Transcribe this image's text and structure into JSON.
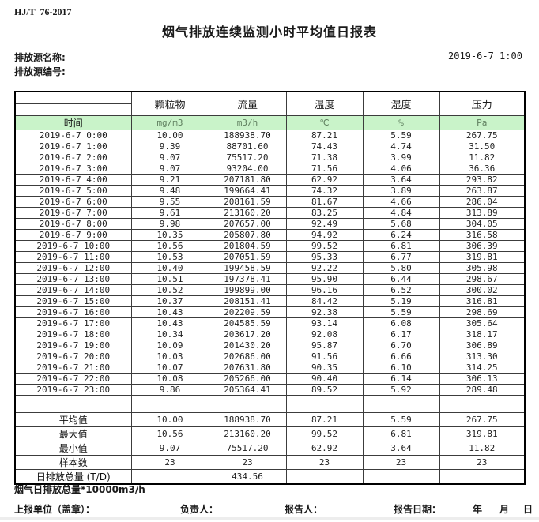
{
  "header": {
    "standard": "HJ/T  76-2017",
    "title": "烟气排放连续监测小时平均值日报表",
    "source_name_label": "排放源名称:",
    "source_id_label": "排放源编号:",
    "datetime": "2019-6-7 1:00"
  },
  "colors": {
    "units_row_green_bg": "#c9f3c9",
    "units_text_green": "#5f7f5f"
  },
  "table": {
    "time_label": "时间",
    "col_headers": [
      "颗粒物",
      "流量",
      "温度",
      "湿度",
      "压力"
    ],
    "units": [
      "mg/m3",
      "m3/h",
      "℃",
      "%",
      "Pa"
    ],
    "rows": [
      {
        "time": "2019-6-7 0:00",
        "values": [
          "10.00",
          "188938.70",
          "87.21",
          "5.59",
          "267.75"
        ]
      },
      {
        "time": "2019-6-7 1:00",
        "values": [
          "9.39",
          "88701.60",
          "74.43",
          "4.74",
          "31.50"
        ]
      },
      {
        "time": "2019-6-7 2:00",
        "values": [
          "9.07",
          "75517.20",
          "71.38",
          "3.99",
          "11.82"
        ]
      },
      {
        "time": "2019-6-7 3:00",
        "values": [
          "9.07",
          "93204.00",
          "71.56",
          "4.06",
          "36.36"
        ]
      },
      {
        "time": "2019-6-7 4:00",
        "values": [
          "9.21",
          "207181.80",
          "62.92",
          "3.64",
          "293.82"
        ]
      },
      {
        "time": "2019-6-7 5:00",
        "values": [
          "9.48",
          "199664.41",
          "74.32",
          "3.89",
          "263.87"
        ]
      },
      {
        "time": "2019-6-7 6:00",
        "values": [
          "9.55",
          "208161.59",
          "81.67",
          "4.66",
          "286.04"
        ]
      },
      {
        "time": "2019-6-7 7:00",
        "values": [
          "9.61",
          "213160.20",
          "83.25",
          "4.84",
          "313.89"
        ]
      },
      {
        "time": "2019-6-7 8:00",
        "values": [
          "9.98",
          "207657.00",
          "92.49",
          "5.68",
          "304.05"
        ]
      },
      {
        "time": "2019-6-7 9:00",
        "values": [
          "10.35",
          "205807.80",
          "94.92",
          "6.24",
          "316.58"
        ]
      },
      {
        "time": "2019-6-7 10:00",
        "values": [
          "10.56",
          "201804.59",
          "99.52",
          "6.81",
          "306.39"
        ]
      },
      {
        "time": "2019-6-7 11:00",
        "values": [
          "10.53",
          "207051.59",
          "95.33",
          "6.77",
          "319.81"
        ]
      },
      {
        "time": "2019-6-7 12:00",
        "values": [
          "10.40",
          "199458.59",
          "92.22",
          "5.80",
          "305.98"
        ]
      },
      {
        "time": "2019-6-7 13:00",
        "values": [
          "10.51",
          "197378.41",
          "95.90",
          "6.44",
          "298.67"
        ]
      },
      {
        "time": "2019-6-7 14:00",
        "values": [
          "10.52",
          "199899.00",
          "96.16",
          "6.52",
          "300.02"
        ]
      },
      {
        "time": "2019-6-7 15:00",
        "values": [
          "10.37",
          "208151.41",
          "84.42",
          "5.19",
          "316.81"
        ]
      },
      {
        "time": "2019-6-7 16:00",
        "values": [
          "10.43",
          "202209.59",
          "92.38",
          "5.59",
          "298.69"
        ]
      },
      {
        "time": "2019-6-7 17:00",
        "values": [
          "10.43",
          "204585.59",
          "93.14",
          "6.08",
          "305.64"
        ]
      },
      {
        "time": "2019-6-7 18:00",
        "values": [
          "10.34",
          "203617.20",
          "92.08",
          "6.17",
          "318.17"
        ]
      },
      {
        "time": "2019-6-7 19:00",
        "values": [
          "10.09",
          "201430.20",
          "95.87",
          "6.70",
          "306.89"
        ]
      },
      {
        "time": "2019-6-7 20:00",
        "values": [
          "10.03",
          "202686.00",
          "91.56",
          "6.66",
          "313.30"
        ]
      },
      {
        "time": "2019-6-7 21:00",
        "values": [
          "10.07",
          "207631.80",
          "90.35",
          "6.10",
          "314.25"
        ]
      },
      {
        "time": "2019-6-7 22:00",
        "values": [
          "10.08",
          "205266.00",
          "90.40",
          "6.14",
          "306.13"
        ]
      },
      {
        "time": "2019-6-7 23:00",
        "values": [
          "9.86",
          "205364.41",
          "89.52",
          "5.92",
          "289.48"
        ]
      }
    ],
    "summary": [
      {
        "label": "平均值",
        "values": [
          "10.00",
          "188938.70",
          "87.21",
          "5.59",
          "267.75"
        ]
      },
      {
        "label": "最大值",
        "values": [
          "10.56",
          "213160.20",
          "99.52",
          "6.81",
          "319.81"
        ]
      },
      {
        "label": "最小值",
        "values": [
          "9.07",
          "75517.20",
          "62.92",
          "3.64",
          "11.82"
        ]
      },
      {
        "label": "样本数",
        "values": [
          "23",
          "23",
          "23",
          "23",
          "23"
        ]
      },
      {
        "label": "日排放总量 (T/D)",
        "values": [
          "",
          "434.56",
          "",
          "",
          ""
        ]
      }
    ]
  },
  "footer": {
    "note": "烟气日排放总量*10000m3/h",
    "unit_label": "上报单位（盖章）：",
    "responsible_label": "负责人：",
    "reporter_label": "报告人：",
    "report_date_label": "报告日期：",
    "year_label": "年",
    "month_label": "月",
    "day_label": "日"
  }
}
